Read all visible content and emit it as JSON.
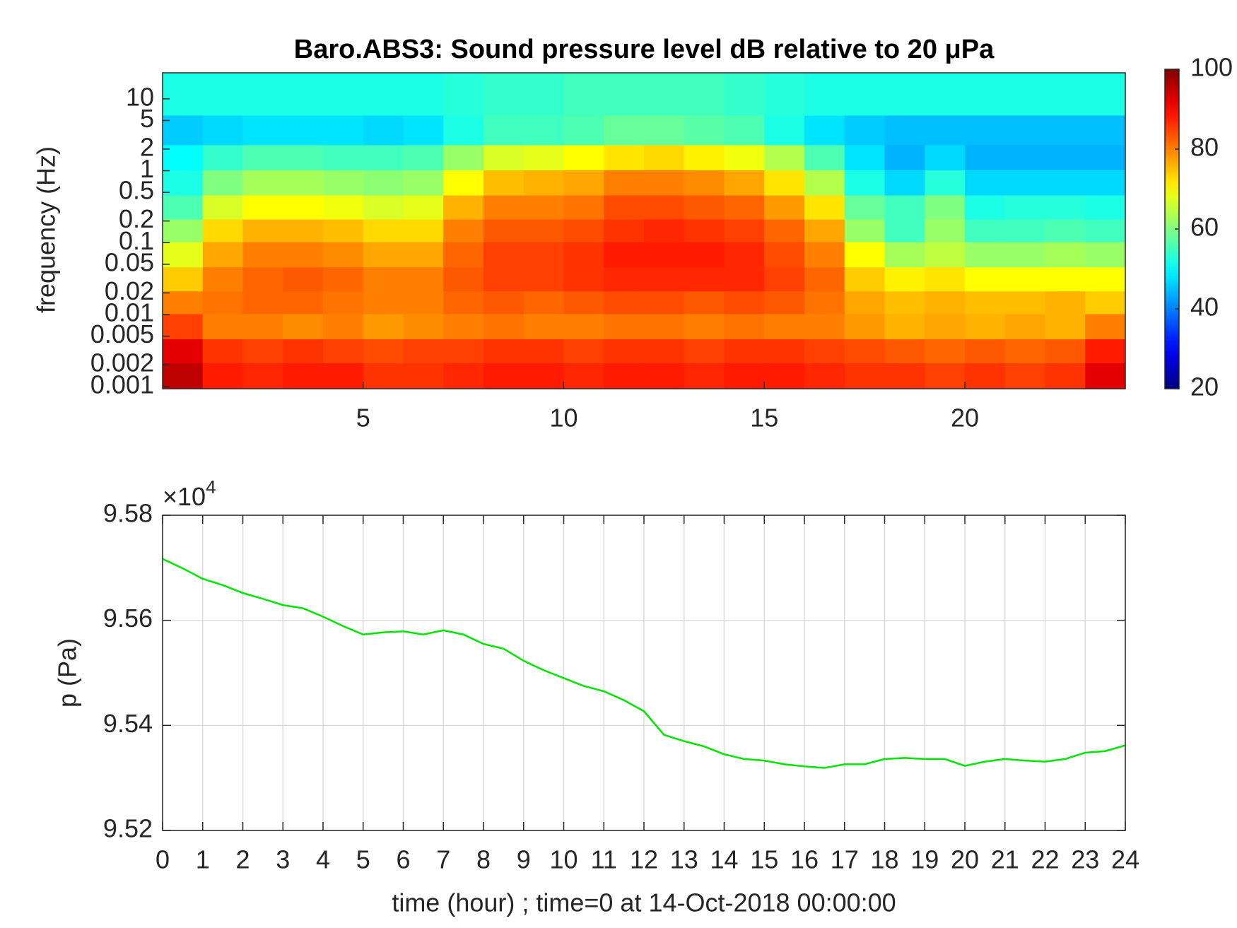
{
  "chart_data": [
    {
      "type": "heatmap",
      "title": "Baro.ABS3: Sound pressure level dB relative to 20 μPa",
      "y_label": "frequency (Hz)",
      "x": [
        0.5,
        1.5,
        2.5,
        3.5,
        4.5,
        5.5,
        6.5,
        7.5,
        8.5,
        9.5,
        10.5,
        11.5,
        12.5,
        13.5,
        14.5,
        15.5,
        16.5,
        17.5,
        18.5,
        19.5,
        20.5,
        21.5,
        22.5,
        23.5
      ],
      "frequencies": [
        0.0015,
        0.003,
        0.007,
        0.015,
        0.03,
        0.07,
        0.15,
        0.3,
        0.7,
        1.5,
        3.5,
        10
      ],
      "z": [
        [
          95,
          88,
          87,
          88,
          88,
          86,
          86,
          87,
          88,
          88,
          87,
          88,
          88,
          87,
          88,
          88,
          87,
          86,
          86,
          85,
          86,
          85,
          86,
          92
        ],
        [
          92,
          86,
          85,
          86,
          85,
          84,
          85,
          85,
          86,
          86,
          85,
          86,
          86,
          85,
          86,
          86,
          85,
          84,
          83,
          82,
          83,
          82,
          83,
          88
        ],
        [
          85,
          80,
          80,
          79,
          80,
          78,
          79,
          80,
          81,
          80,
          80,
          81,
          81,
          80,
          81,
          80,
          80,
          78,
          76,
          77,
          76,
          77,
          76,
          80
        ],
        [
          80,
          81,
          82,
          82,
          81,
          80,
          80,
          82,
          83,
          82,
          83,
          84,
          84,
          83,
          84,
          83,
          81,
          77,
          75,
          76,
          75,
          75,
          76,
          74
        ],
        [
          74,
          80,
          82,
          83,
          82,
          80,
          80,
          83,
          85,
          85,
          86,
          87,
          87,
          87,
          87,
          85,
          82,
          74,
          71,
          72,
          70,
          70,
          70,
          70
        ],
        [
          68,
          77,
          80,
          80,
          79,
          77,
          77,
          82,
          85,
          85,
          86,
          88,
          88,
          88,
          87,
          84,
          80,
          70,
          63,
          65,
          62,
          62,
          63,
          62
        ],
        [
          62,
          73,
          76,
          76,
          75,
          73,
          73,
          80,
          83,
          83,
          84,
          86,
          87,
          86,
          85,
          82,
          77,
          62,
          55,
          62,
          55,
          55,
          56,
          55
        ],
        [
          56,
          67,
          70,
          70,
          69,
          67,
          68,
          76,
          80,
          80,
          81,
          84,
          84,
          83,
          82,
          78,
          72,
          58,
          55,
          60,
          52,
          53,
          53,
          52
        ],
        [
          52,
          60,
          63,
          63,
          62,
          61,
          62,
          70,
          75,
          76,
          77,
          80,
          80,
          79,
          77,
          72,
          64,
          52,
          47,
          53,
          47,
          47,
          47,
          47
        ],
        [
          50,
          54,
          56,
          56,
          55,
          55,
          56,
          62,
          67,
          68,
          70,
          72,
          73,
          71,
          69,
          64,
          56,
          48,
          44,
          47,
          44,
          44,
          44,
          44
        ],
        [
          46,
          47,
          48,
          48,
          48,
          47,
          48,
          52,
          55,
          55,
          56,
          58,
          58,
          57,
          56,
          52,
          48,
          46,
          45,
          45,
          45,
          45,
          45,
          45
        ],
        [
          52,
          52,
          52,
          52,
          52,
          52,
          52,
          53,
          54,
          54,
          55,
          55,
          55,
          55,
          54,
          53,
          52,
          52,
          52,
          52,
          52,
          52,
          52,
          52
        ]
      ],
      "colormap": "jet",
      "clim": [
        20,
        100
      ],
      "colorbar_ticks": [
        20,
        40,
        60,
        80,
        100
      ],
      "xlim": [
        0,
        24
      ],
      "xticks": [
        5,
        10,
        15,
        20
      ],
      "ylim": [
        0.00093,
        23
      ],
      "yscale": "log",
      "yticks": [
        0.001,
        0.002,
        0.005,
        0.01,
        0.02,
        0.05,
        0.1,
        0.2,
        0.5,
        1,
        2,
        5,
        10
      ]
    },
    {
      "type": "line",
      "x_label": "time (hour) ; time=0 at 14-Oct-2018 00:00:00",
      "y_label": "p (Pa)",
      "y_multiplier": {
        "base": "×10",
        "exponent": "4"
      },
      "grid": true,
      "series": [
        {
          "color": "#00e600",
          "x": [
            0,
            0.5,
            1,
            1.5,
            2,
            2.5,
            3,
            3.5,
            4,
            4.5,
            5,
            5.5,
            6,
            6.5,
            7,
            7.5,
            8,
            8.5,
            9,
            9.5,
            10,
            10.5,
            11,
            11.5,
            12,
            12.5,
            13,
            13.5,
            14,
            14.5,
            15,
            15.5,
            16,
            16.5,
            17,
            17.5,
            18,
            18.5,
            19,
            19.5,
            20,
            20.5,
            21,
            21.5,
            22,
            22.5,
            23,
            23.5,
            24
          ],
          "values": [
            95717,
            95699,
            95679,
            95667,
            95652,
            95641,
            95629,
            95623,
            95607,
            95589,
            95573,
            95577,
            95579,
            95573,
            95581,
            95573,
            95555,
            95546,
            95523,
            95505,
            95490,
            95475,
            95465,
            95448,
            95427,
            95382,
            95370,
            95360,
            95345,
            95336,
            95333,
            95326,
            95322,
            95319,
            95326,
            95326,
            95336,
            95338,
            95336,
            95336,
            95323,
            95331,
            95336,
            95333,
            95331,
            95336,
            95348,
            95351,
            95362
          ]
        }
      ],
      "xlim": [
        0,
        24
      ],
      "xticks": [
        0,
        1,
        2,
        3,
        4,
        5,
        6,
        7,
        8,
        9,
        10,
        11,
        12,
        13,
        14,
        15,
        16,
        17,
        18,
        19,
        20,
        21,
        22,
        23,
        24
      ],
      "ylim": [
        95200,
        95800
      ],
      "yticks": [
        {
          "value": 95200,
          "label": "9.52"
        },
        {
          "value": 95400,
          "label": "9.54"
        },
        {
          "value": 95600,
          "label": "9.56"
        },
        {
          "value": 95800,
          "label": "9.58"
        }
      ]
    }
  ]
}
